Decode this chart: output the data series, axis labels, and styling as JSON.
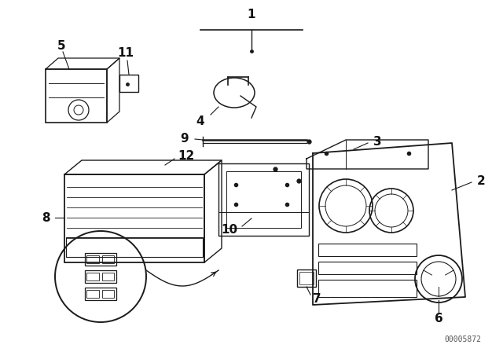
{
  "background_color": "#ffffff",
  "watermark": "00005872",
  "line_color": "#1a1a1a",
  "label_color": "#111111",
  "label_fontsize": 11,
  "watermark_fontsize": 7
}
